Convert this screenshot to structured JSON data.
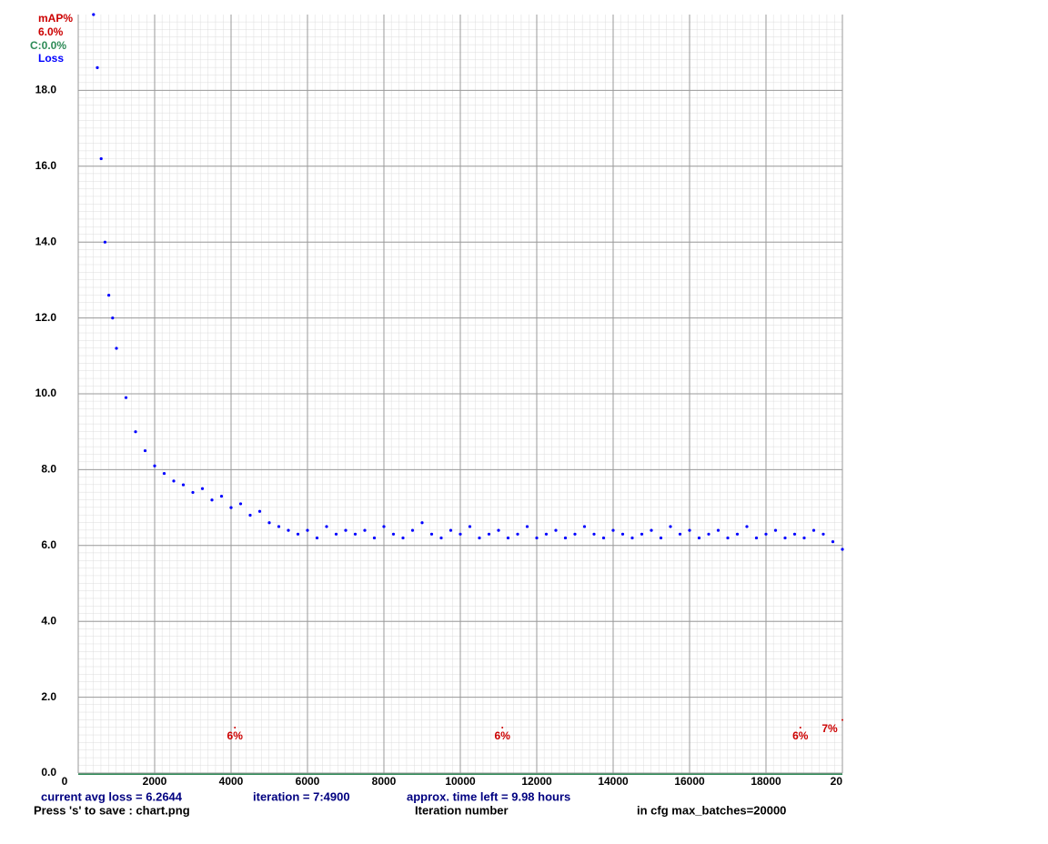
{
  "chart_data": {
    "type": "scatter",
    "xlabel": "Iteration number",
    "xlim": [
      0,
      20000
    ],
    "ylim": [
      0,
      20
    ],
    "y2lim": [
      0,
      100
    ],
    "xticks": [
      0,
      2000,
      4000,
      6000,
      8000,
      10000,
      12000,
      14000,
      16000,
      18000,
      {
        "value": 20000,
        "label": "20"
      }
    ],
    "yticks": [
      {
        "value": 0,
        "label": "0.0"
      },
      {
        "value": 2,
        "label": "2.0"
      },
      {
        "value": 4,
        "label": "4.0"
      },
      {
        "value": 6,
        "label": "6.0"
      },
      {
        "value": 8,
        "label": "8.0"
      },
      {
        "value": 10,
        "label": "10.0"
      },
      {
        "value": 12,
        "label": "12.0"
      },
      {
        "value": 14,
        "label": "14.0"
      },
      {
        "value": 16,
        "label": "16.0"
      },
      {
        "value": 18,
        "label": "18.0"
      }
    ],
    "grid": true,
    "legend_texts": {
      "map_value": "6.0%",
      "c_value": "C:0.0%"
    },
    "series": [
      {
        "name": "Loss",
        "color": "#0000ff",
        "x": [
          400,
          500,
          600,
          700,
          800,
          900,
          1000,
          1250,
          1500,
          1750,
          2000,
          2250,
          2500,
          2750,
          3000,
          3250,
          3500,
          3750,
          4000,
          4250,
          4500,
          4750,
          5000,
          5250,
          5500,
          5750,
          6000,
          6250,
          6500,
          6750,
          7000,
          7250,
          7500,
          7750,
          8000,
          8250,
          8500,
          8750,
          9000,
          9250,
          9500,
          9750,
          10000,
          10250,
          10500,
          10750,
          11000,
          11250,
          11500,
          11750,
          12000,
          12250,
          12500,
          12750,
          13000,
          13250,
          13500,
          13750,
          14000,
          14250,
          14500,
          14750,
          15000,
          15250,
          15500,
          15750,
          16000,
          16250,
          16500,
          16750,
          17000,
          17250,
          17500,
          17750,
          18000,
          18250,
          18500,
          18750,
          19000,
          19250,
          19500,
          19750,
          20000
        ],
        "values": [
          20.0,
          18.6,
          16.2,
          14.0,
          12.6,
          12.0,
          11.2,
          9.9,
          9.0,
          8.5,
          8.1,
          7.9,
          7.7,
          7.6,
          7.4,
          7.5,
          7.2,
          7.3,
          7.0,
          7.1,
          6.8,
          6.9,
          6.6,
          6.5,
          6.4,
          6.3,
          6.4,
          6.2,
          6.5,
          6.3,
          6.4,
          6.3,
          6.4,
          6.2,
          6.5,
          6.3,
          6.2,
          6.4,
          6.6,
          6.3,
          6.2,
          6.4,
          6.3,
          6.5,
          6.2,
          6.3,
          6.4,
          6.2,
          6.3,
          6.5,
          6.2,
          6.3,
          6.4,
          6.2,
          6.3,
          6.5,
          6.3,
          6.2,
          6.4,
          6.3,
          6.2,
          6.3,
          6.4,
          6.2,
          6.5,
          6.3,
          6.4,
          6.2,
          6.3,
          6.4,
          6.2,
          6.3,
          6.5,
          6.2,
          6.3,
          6.4,
          6.2,
          6.3,
          6.2,
          6.4,
          6.3,
          6.1,
          5.9
        ]
      },
      {
        "name": "mAP%",
        "color": "#cc0000",
        "axis": "y2",
        "x": [
          4100,
          11100,
          18900,
          20000
        ],
        "values": [
          6,
          6,
          6,
          7
        ],
        "value_labels": [
          "6%",
          "6%",
          "6%",
          "7%"
        ]
      }
    ],
    "status": {
      "avg_loss": "current avg loss = 6.2644",
      "iteration": "iteration = 7:4900",
      "time_left": "approx. time left = 9.98 hours",
      "save_hint": "Press 's' to save : chart.png",
      "max_batches": "in cfg max_batches=20000"
    }
  }
}
